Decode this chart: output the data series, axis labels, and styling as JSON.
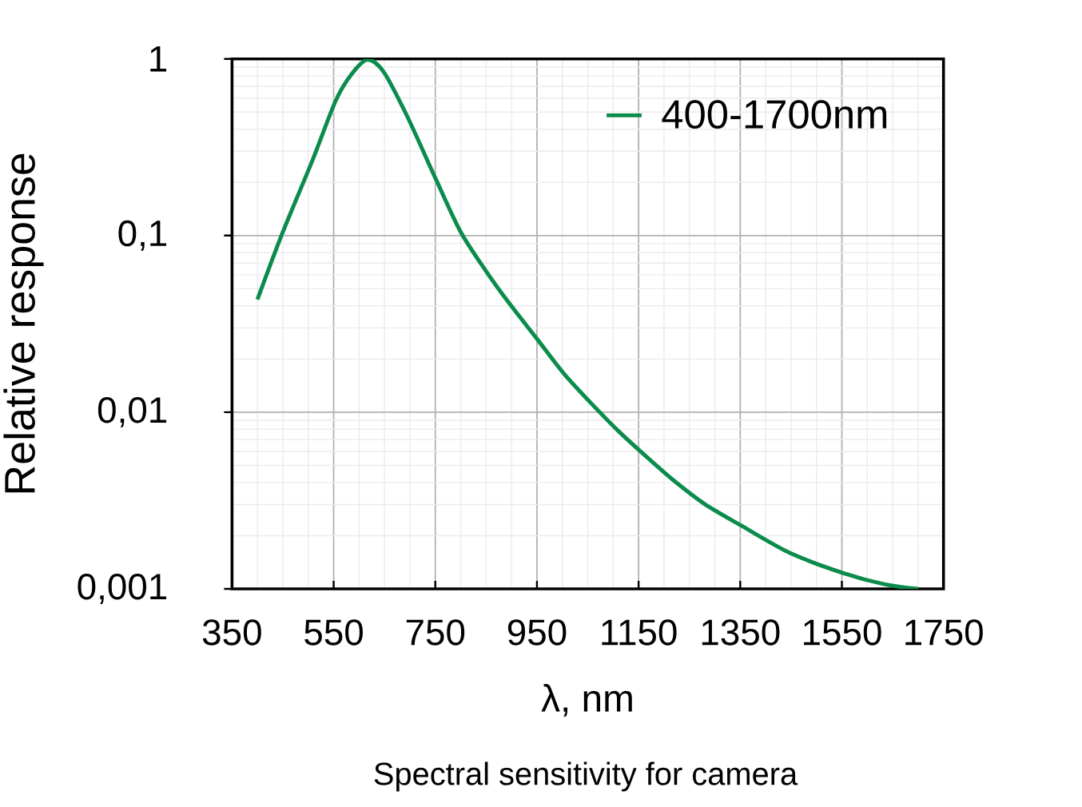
{
  "chart_data": {
    "type": "line",
    "xlabel": "λ, nm",
    "ylabel": "Relative response",
    "annotations": [
      "Spectral sensitivity for camera"
    ],
    "x": [
      400,
      449,
      507,
      554,
      585,
      616,
      648,
      695,
      750,
      799,
      849,
      894,
      951,
      1004,
      1061,
      1113,
      1170,
      1218,
      1280,
      1351,
      1447,
      1552,
      1635,
      1700
    ],
    "series": [
      {
        "name": "400-1700nm",
        "color": "#0b8c4c",
        "values": [
          0.0434,
          0.103,
          0.261,
          0.58,
          0.818,
          0.99,
          0.847,
          0.471,
          0.212,
          0.106,
          0.0634,
          0.0419,
          0.0258,
          0.0164,
          0.0109,
          0.00769,
          0.00545,
          0.00413,
          0.00302,
          0.00229,
          0.0016,
          0.00123,
          0.00106,
          0.001
        ]
      }
    ],
    "xlim": [
      350,
      1750
    ],
    "xticks": [
      350,
      550,
      750,
      950,
      1150,
      1350,
      1550,
      1750
    ],
    "ylim": [
      0.001,
      1
    ],
    "yticks": [
      1,
      {
        "value": 0.1,
        "label": "0,1"
      },
      {
        "value": 0.01,
        "label": "0,01"
      },
      {
        "value": 0.001,
        "label": "0,001"
      }
    ],
    "log": "y",
    "grid": true,
    "legend": "top right"
  }
}
